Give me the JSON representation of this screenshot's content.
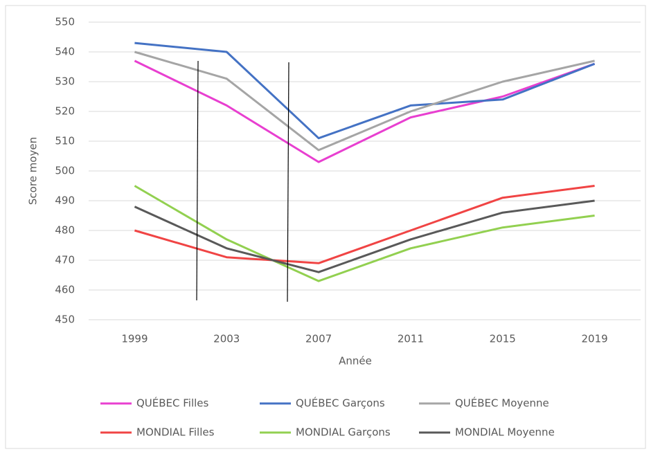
{
  "chart_data": {
    "type": "line",
    "categories": [
      "1999",
      "2003",
      "2007",
      "2011",
      "2015",
      "2019"
    ],
    "series": [
      {
        "name": "QUÉBEC Filles",
        "color": "#e83fd0",
        "values": [
          537,
          522,
          503,
          518,
          525,
          536
        ]
      },
      {
        "name": "QUÉBEC Garçons",
        "color": "#4472c4",
        "values": [
          543,
          540,
          511,
          522,
          524,
          536
        ]
      },
      {
        "name": "QUÉBEC Moyenne",
        "color": "#a5a5a5",
        "values": [
          540,
          531,
          507,
          520,
          530,
          537
        ]
      },
      {
        "name": "MONDIAL Filles",
        "color": "#f04444",
        "values": [
          480,
          471,
          469,
          480,
          491,
          495
        ]
      },
      {
        "name": "MONDIAL Garçons",
        "color": "#92d050",
        "values": [
          495,
          477,
          463,
          474,
          481,
          485
        ]
      },
      {
        "name": "MONDIAL Moyenne",
        "color": "#595959",
        "values": [
          488,
          474,
          466,
          477,
          486,
          490
        ]
      }
    ],
    "xlabel": "Année",
    "ylabel": "Score moyen",
    "ylim": [
      450,
      550
    ],
    "yticks": [
      450,
      460,
      470,
      480,
      490,
      500,
      510,
      520,
      530,
      540,
      550
    ],
    "grid": true,
    "legend": "bottom"
  }
}
